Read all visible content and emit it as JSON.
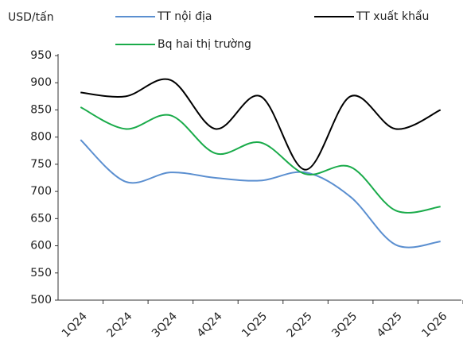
{
  "chart_data": {
    "type": "line",
    "y_label": "USD/tấn",
    "categories": [
      "1Q24",
      "2Q24",
      "3Q24",
      "4Q24",
      "1Q25",
      "2Q25",
      "3Q25",
      "4Q25",
      "1Q26"
    ],
    "series": [
      {
        "name": "TT nội địa",
        "color": "#5b8fd0",
        "values": [
          795,
          718,
          735,
          725,
          720,
          735,
          690,
          602,
          608
        ]
      },
      {
        "name": "TT xuất khẩu",
        "color": "#000000",
        "values": [
          882,
          875,
          905,
          815,
          875,
          740,
          875,
          815,
          850
        ]
      },
      {
        "name": "Bq hai thị trường",
        "color": "#1aab4a",
        "values": [
          855,
          815,
          840,
          770,
          790,
          732,
          745,
          665,
          672
        ]
      }
    ],
    "ylim": [
      500,
      950
    ],
    "yticks": [
      500,
      550,
      600,
      650,
      700,
      750,
      800,
      850,
      900,
      950
    ],
    "grid": false
  }
}
